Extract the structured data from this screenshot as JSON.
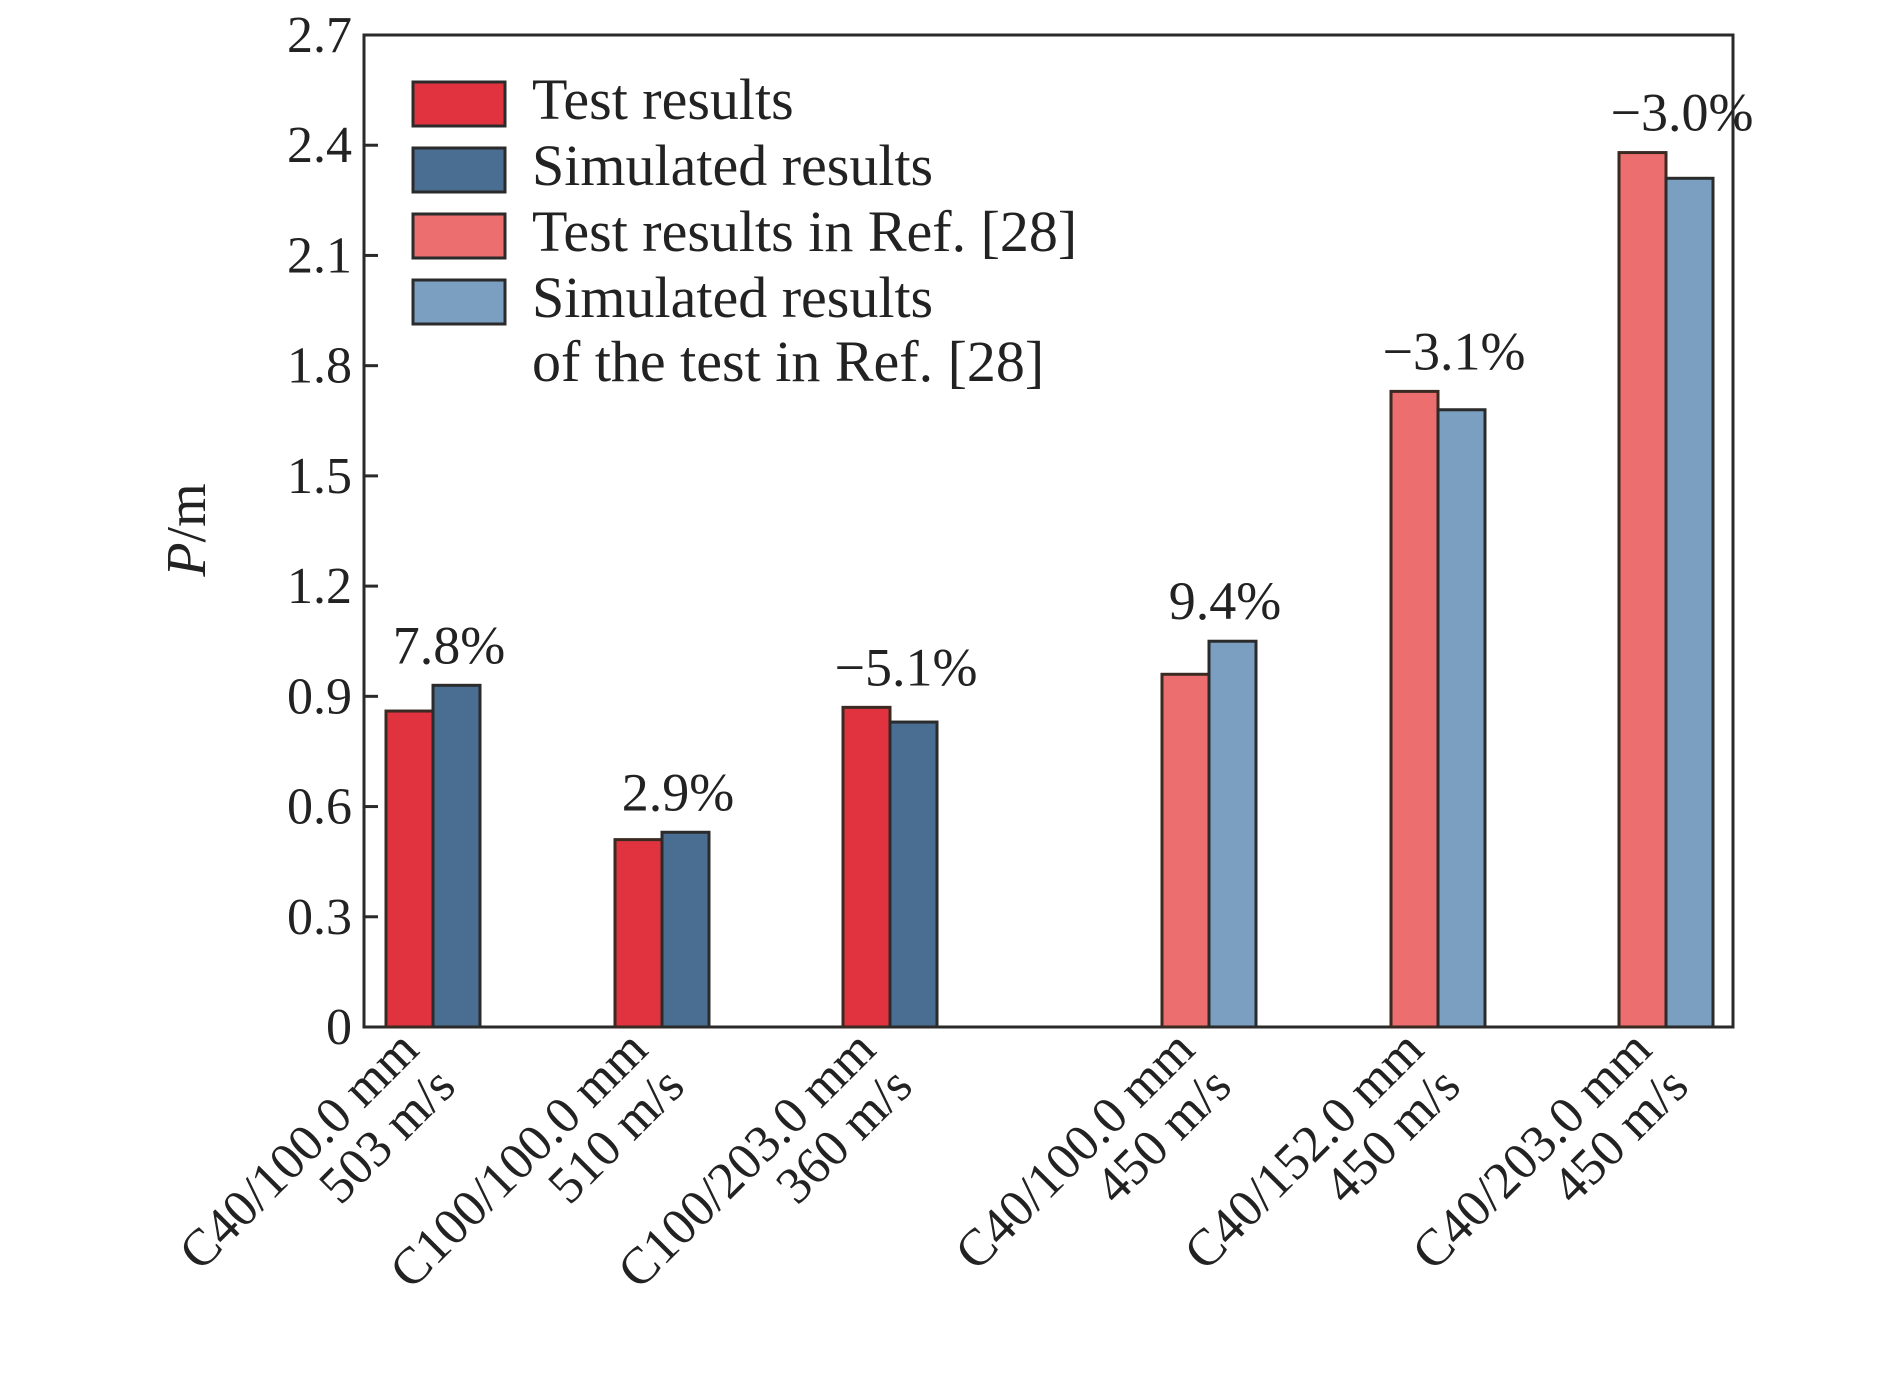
{
  "chart_data": {
    "type": "bar",
    "ylabel": {
      "italic": "P",
      "rest": "/m"
    },
    "ylim": [
      0,
      2.7
    ],
    "yticks": [
      0,
      0.3,
      0.6,
      0.9,
      1.2,
      1.5,
      1.8,
      2.1,
      2.4,
      2.7
    ],
    "ytick_labels": [
      "0",
      "0.3",
      "0.6",
      "0.9",
      "1.2",
      "1.5",
      "1.8",
      "2.1",
      "2.4",
      "2.7"
    ],
    "grid": false,
    "legend_position": "top-left",
    "categories": [
      {
        "line1": "C40/100.0 mm",
        "line2": "503 m/s"
      },
      {
        "line1": "C100/100.0 mm",
        "line2": "510 m/s"
      },
      {
        "line1": "C100/203.0 mm",
        "line2": "360 m/s"
      },
      {
        "line1": "C40/100.0 mm",
        "line2": "450 m/s"
      },
      {
        "line1": "C40/152.0 mm",
        "line2": "450 m/s"
      },
      {
        "line1": "C40/203.0 mm",
        "line2": "450 m/s"
      }
    ],
    "legend": [
      {
        "label": "Test results",
        "color": "#e0333f"
      },
      {
        "label": "Simulated results",
        "color": "#4a6e91"
      },
      {
        "label": "Test results in Ref. [28]",
        "color": "#ec6e6f"
      },
      {
        "label": "Simulated results",
        "label2": "of the test in Ref. [28]",
        "color": "#7a9fc0"
      }
    ],
    "bars": [
      {
        "test": 0.86,
        "sim": 0.93,
        "test_color": "#e0333f",
        "sim_color": "#4a6e91",
        "diff_label": "7.8%"
      },
      {
        "test": 0.51,
        "sim": 0.53,
        "test_color": "#e0333f",
        "sim_color": "#4a6e91",
        "diff_label": "2.9%"
      },
      {
        "test": 0.87,
        "sim": 0.83,
        "test_color": "#e0333f",
        "sim_color": "#4a6e91",
        "diff_label": "−5.1%"
      },
      {
        "test": 0.96,
        "sim": 1.05,
        "test_color": "#ec6e6f",
        "sim_color": "#7a9fc0",
        "diff_label": "9.4%"
      },
      {
        "test": 1.73,
        "sim": 1.68,
        "test_color": "#ec6e6f",
        "sim_color": "#7a9fc0",
        "diff_label": "−3.1%"
      },
      {
        "test": 2.38,
        "sim": 2.31,
        "test_color": "#ec6e6f",
        "sim_color": "#7a9fc0",
        "diff_label": "−3.0%"
      }
    ]
  }
}
